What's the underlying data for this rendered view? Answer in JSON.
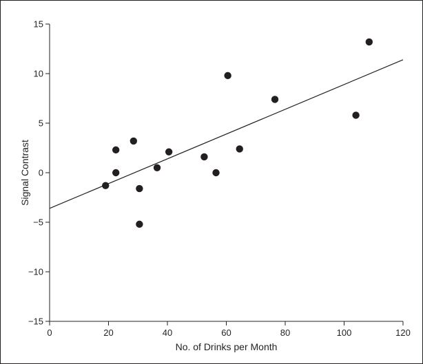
{
  "chart_data": {
    "type": "scatter",
    "title": "",
    "xlabel": "No. of Drinks per Month",
    "ylabel": "Signal Contrast",
    "xlim": [
      0,
      120
    ],
    "ylim": [
      -15,
      15
    ],
    "xticks": [
      0,
      20,
      40,
      60,
      80,
      100,
      120
    ],
    "yticks": [
      15,
      10,
      5,
      0,
      -5,
      -10,
      -15
    ],
    "ytick_labels": [
      "15",
      "10",
      "5",
      "0",
      "−5",
      "−10",
      "−15"
    ],
    "grid": false,
    "legend": "none",
    "marker_color": "#231f20",
    "points": [
      {
        "x": 19,
        "y": -1.3
      },
      {
        "x": 22.5,
        "y": 2.3
      },
      {
        "x": 22.5,
        "y": 0.0
      },
      {
        "x": 28.5,
        "y": 3.2
      },
      {
        "x": 30.5,
        "y": -1.6
      },
      {
        "x": 30.5,
        "y": -5.2
      },
      {
        "x": 36.5,
        "y": 0.5
      },
      {
        "x": 40.5,
        "y": 2.1
      },
      {
        "x": 52.5,
        "y": 1.6
      },
      {
        "x": 56.5,
        "y": 0.0
      },
      {
        "x": 60.5,
        "y": 9.8
      },
      {
        "x": 64.5,
        "y": 2.4
      },
      {
        "x": 76.5,
        "y": 7.4
      },
      {
        "x": 104,
        "y": 5.8
      },
      {
        "x": 108.5,
        "y": 13.2
      }
    ],
    "fit_line": {
      "x": [
        0,
        120
      ],
      "y": [
        -3.6,
        11.4
      ]
    }
  }
}
